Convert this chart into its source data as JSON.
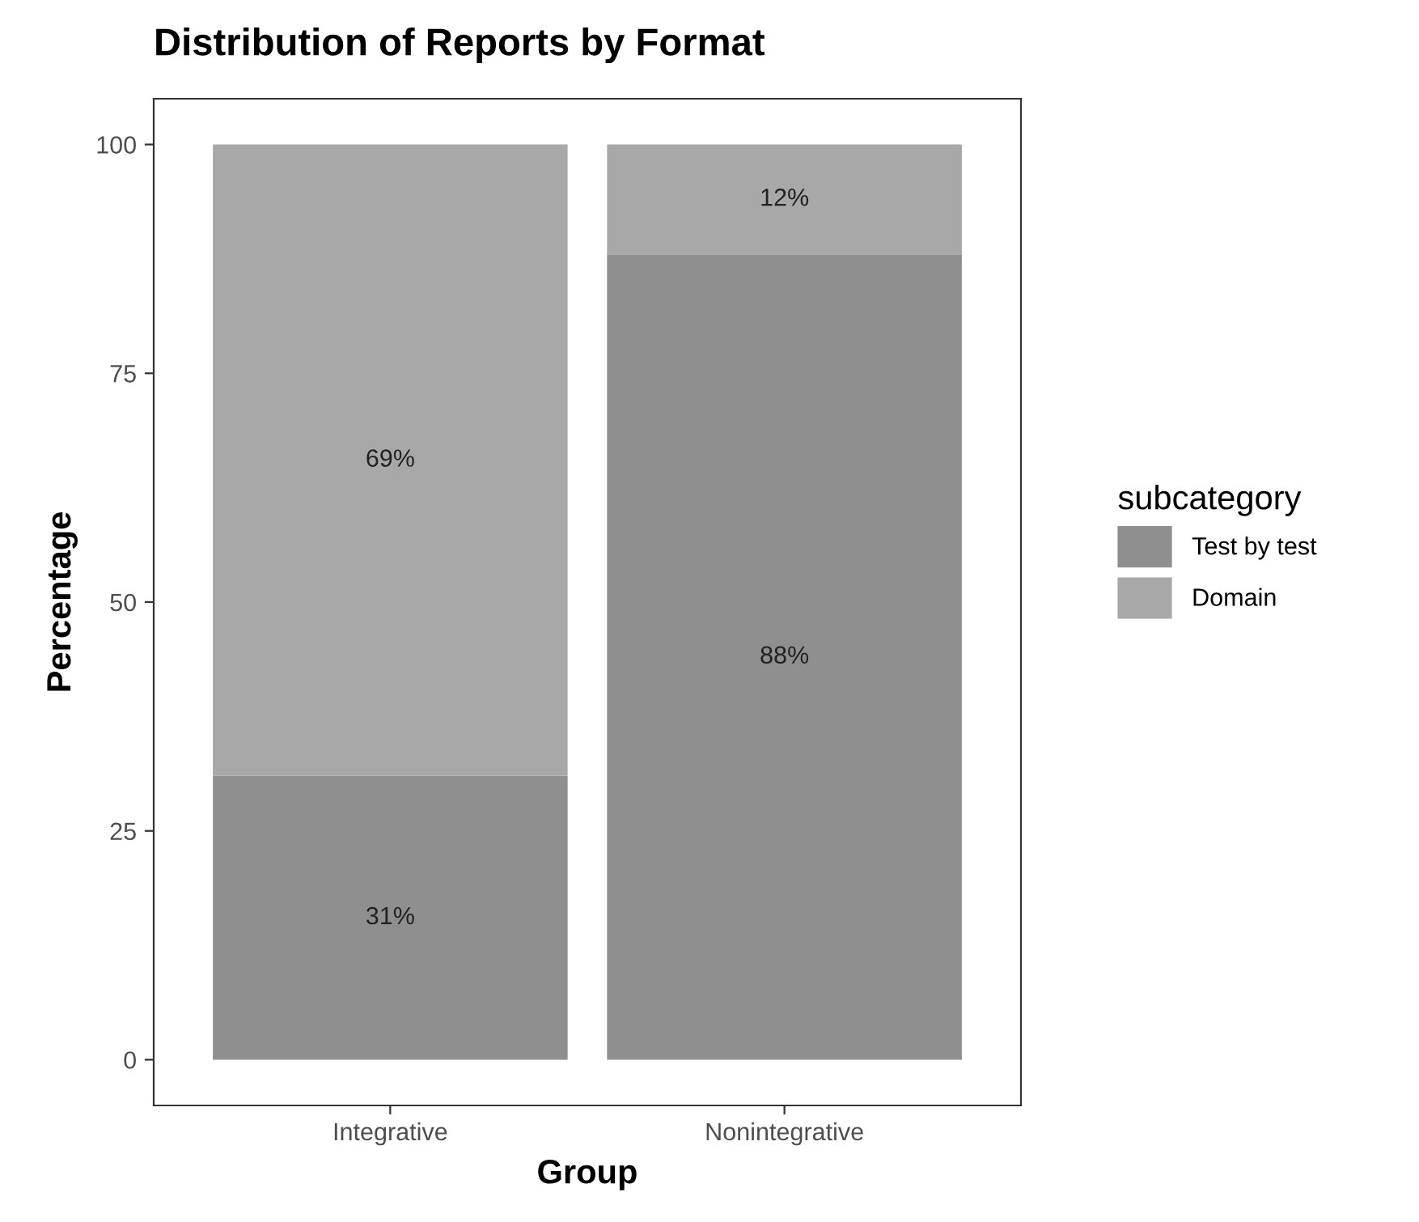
{
  "chart_data": {
    "type": "bar",
    "title": "Distribution of Reports by Format",
    "xlabel": "Group",
    "ylabel": "Percentage",
    "legend_title": "subcategory",
    "categories": [
      "Integrative",
      "Nonintegrative"
    ],
    "stacked": true,
    "series": [
      {
        "name": "Test by test",
        "color": "#8f8f8f",
        "values": [
          31,
          88
        ],
        "value_labels": [
          "31%",
          "88%"
        ]
      },
      {
        "name": "Domain",
        "color": "#a8a8a8",
        "values": [
          69,
          12
        ],
        "value_labels": [
          "69%",
          "12%"
        ]
      }
    ],
    "ylim": [
      -5,
      105
    ],
    "yticks": [
      0,
      25,
      50,
      75,
      100
    ],
    "grid": false,
    "legend": "right"
  }
}
